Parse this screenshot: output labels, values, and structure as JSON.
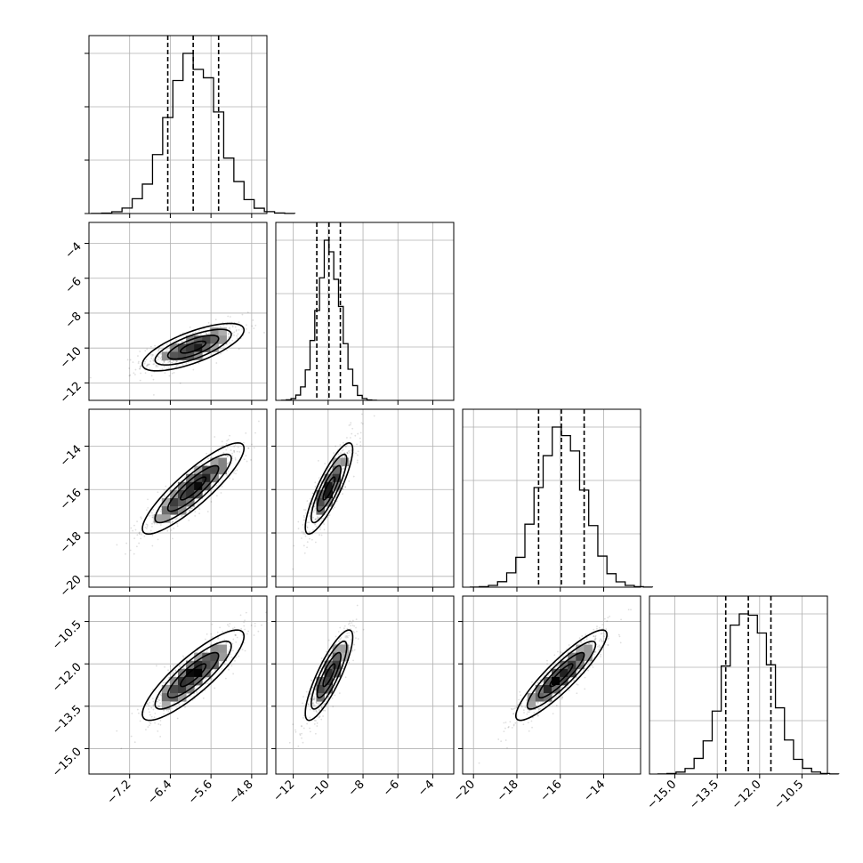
{
  "chart_data": {
    "type": "corner",
    "parameters": [
      {
        "mean": -5.95,
        "sd": 0.5,
        "quantiles": [
          -6.45,
          -5.95,
          -5.45
        ],
        "range": [
          -8.0,
          -4.5
        ],
        "ticks": [
          -7.2,
          -6.4,
          -5.6,
          -4.8
        ],
        "tick_labels": [
          "−7.2",
          "−6.4",
          "−5.6",
          "−4.8"
        ]
      },
      {
        "mean": -9.95,
        "sd": 0.68,
        "quantiles": [
          -10.65,
          -9.95,
          -9.3
        ],
        "range": [
          -13.0,
          -2.8
        ],
        "ticks": [
          -12,
          -10,
          -8,
          -6,
          -4
        ],
        "tick_labels": [
          "−12",
          "−10",
          "−8",
          "−6",
          "−4"
        ]
      },
      {
        "mean": -15.95,
        "sd": 1.05,
        "quantiles": [
          -17.0,
          -15.95,
          -14.9
        ],
        "range": [
          -20.5,
          -12.3
        ],
        "ticks": [
          -20,
          -18,
          -16,
          -14
        ],
        "tick_labels": [
          "−20",
          "−18",
          "−16",
          "−14"
        ]
      },
      {
        "mean": -12.4,
        "sd": 0.8,
        "quantiles": [
          -13.2,
          -12.4,
          -11.6
        ],
        "range": [
          -15.9,
          -9.6
        ],
        "ticks": [
          -15.0,
          -13.5,
          -12.0,
          -10.5
        ],
        "tick_labels": [
          "−15.0",
          "−13.5",
          "−12.0",
          "−10.5"
        ]
      }
    ],
    "correlations": [
      {
        "i": 1,
        "j": 0,
        "rho": 0.72
      },
      {
        "i": 2,
        "j": 0,
        "rho": 0.88
      },
      {
        "i": 2,
        "j": 1,
        "rho": 0.85
      },
      {
        "i": 3,
        "j": 0,
        "rho": 0.86
      },
      {
        "i": 3,
        "j": 1,
        "rho": 0.84
      },
      {
        "i": 3,
        "j": 2,
        "rho": 0.9
      }
    ],
    "grid": true,
    "histogram_bins": 20,
    "contour_levels_sigma": [
      0.5,
      1.0,
      1.5,
      2.0
    ],
    "colors": {
      "ink": "#000000",
      "grid": "#b0b0b0",
      "background": "#ffffff"
    }
  }
}
